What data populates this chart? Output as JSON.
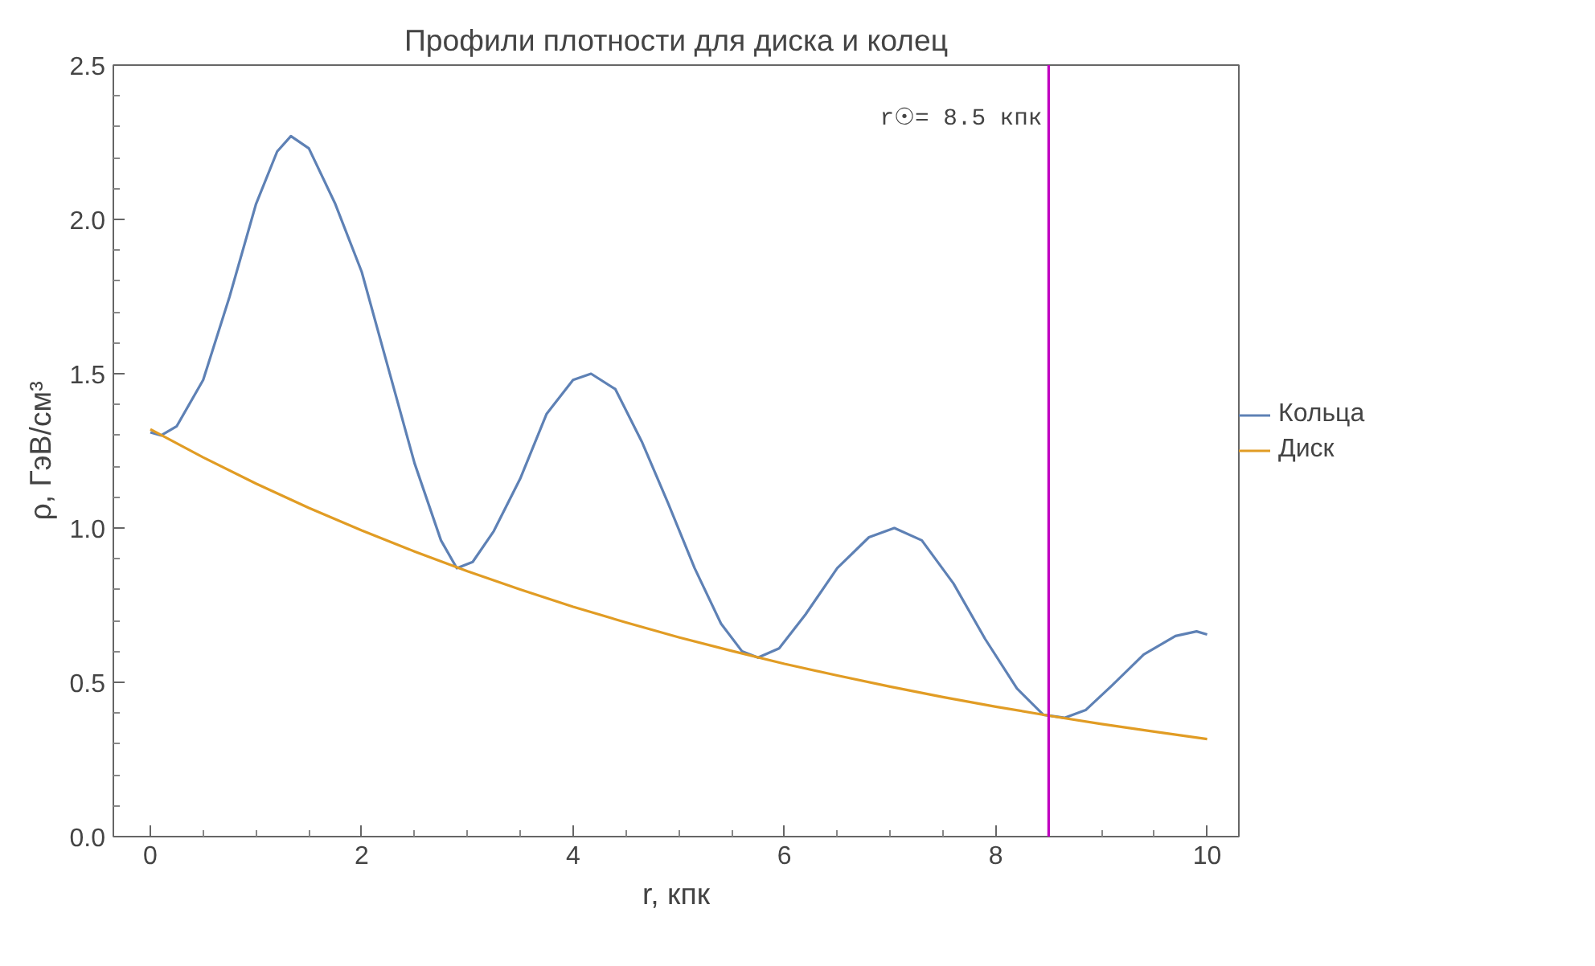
{
  "chart_data": {
    "type": "line",
    "title": "Профили плотности для диска и колец",
    "xlabel": "r, кпк",
    "ylabel": "ρ, ГэВ/см³",
    "xlim": [
      -0.35,
      10.3
    ],
    "ylim": [
      0,
      2.5
    ],
    "xticks": [
      0,
      2,
      4,
      6,
      8,
      10
    ],
    "yticks": [
      {
        "value": 0,
        "label": "0.0"
      },
      0.5,
      {
        "value": 1,
        "label": "1.0"
      },
      1.5,
      {
        "value": 2,
        "label": "2.0"
      },
      2.5
    ],
    "grid": false,
    "legend": "right",
    "marker": "none",
    "line_style": "solid",
    "series": [
      {
        "name": "Кольца",
        "color": "#5e81b5",
        "x": [
          0,
          0.1,
          0.25,
          0.5,
          0.75,
          1.0,
          1.2,
          1.33,
          1.5,
          1.75,
          2.0,
          2.25,
          2.5,
          2.75,
          2.9,
          3.05,
          3.25,
          3.5,
          3.75,
          4.0,
          4.17,
          4.4,
          4.65,
          4.9,
          5.15,
          5.4,
          5.6,
          5.75,
          5.95,
          6.2,
          6.5,
          6.8,
          7.04,
          7.3,
          7.6,
          7.9,
          8.2,
          8.45,
          8.65,
          8.85,
          9.1,
          9.4,
          9.7,
          9.9,
          10.0
        ],
        "values": [
          1.31,
          1.3,
          1.33,
          1.48,
          1.75,
          2.05,
          2.22,
          2.27,
          2.23,
          2.05,
          1.83,
          1.52,
          1.21,
          0.96,
          0.87,
          0.89,
          0.99,
          1.16,
          1.37,
          1.48,
          1.5,
          1.45,
          1.28,
          1.08,
          0.87,
          0.69,
          0.6,
          0.58,
          0.61,
          0.72,
          0.87,
          0.97,
          1.0,
          0.96,
          0.82,
          0.64,
          0.48,
          0.395,
          0.385,
          0.41,
          0.49,
          0.59,
          0.65,
          0.665,
          0.655
        ]
      },
      {
        "name": "Диск",
        "color": "#e19c24",
        "x": [
          0,
          0.5,
          1,
          1.5,
          2,
          2.5,
          3,
          3.5,
          4,
          4.5,
          5,
          5.5,
          6,
          6.5,
          7,
          7.5,
          8,
          8.5,
          9,
          9.5,
          10
        ],
        "values": [
          1.32,
          1.229,
          1.144,
          1.065,
          0.992,
          0.924,
          0.86,
          0.801,
          0.745,
          0.694,
          0.646,
          0.602,
          0.56,
          0.522,
          0.486,
          0.452,
          0.421,
          0.392,
          0.365,
          0.34,
          0.316
        ]
      }
    ],
    "ref_lines": [
      {
        "axis": "x",
        "value": 8.5,
        "label": "r☉= 8.5 кпк",
        "color": "#c000c0",
        "line_style": "solid"
      }
    ]
  }
}
